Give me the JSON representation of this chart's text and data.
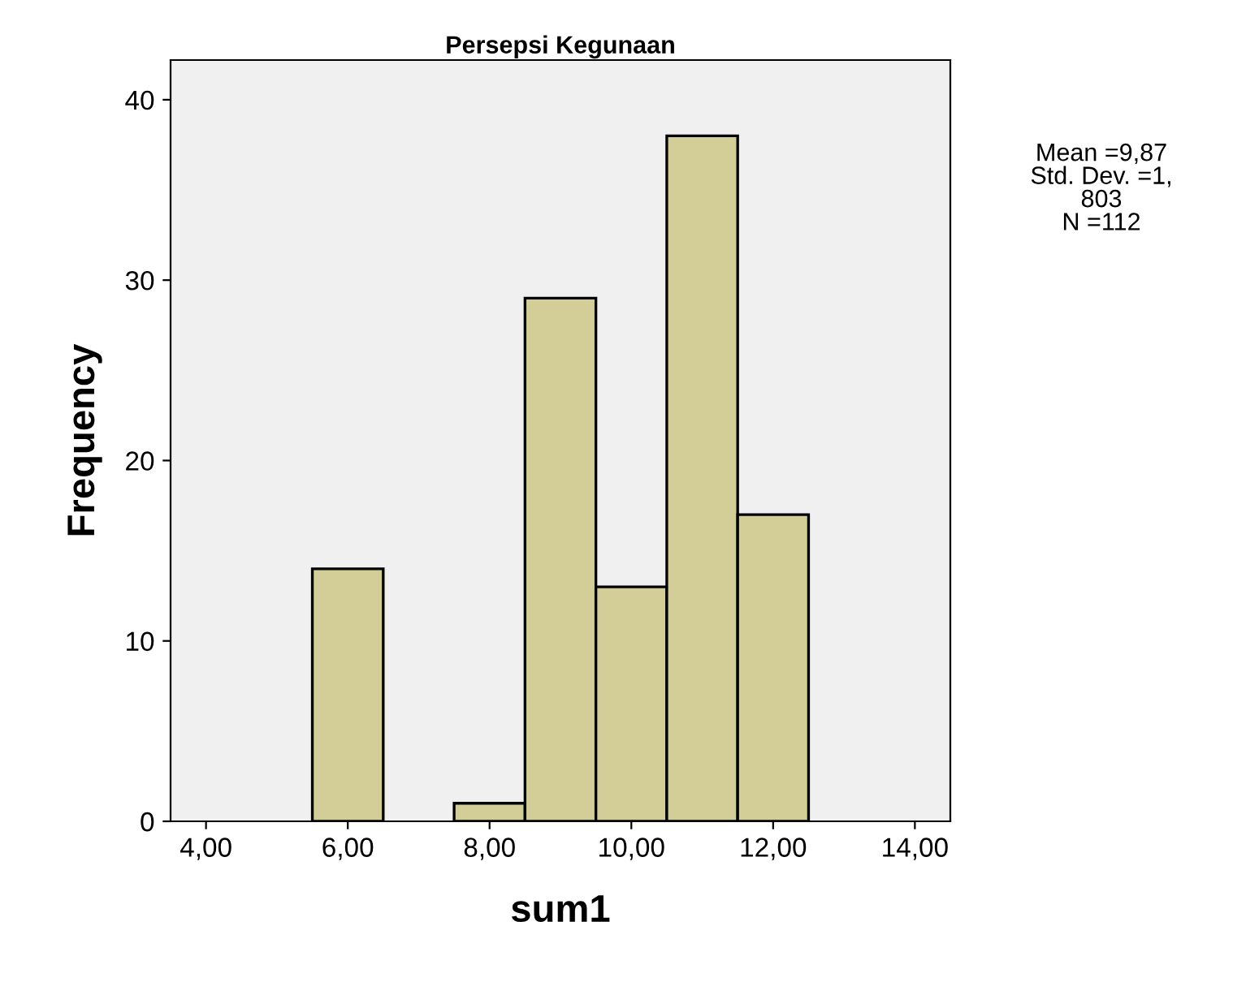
{
  "chart_data": {
    "type": "histogram",
    "title": "Persepsi Kegunaan",
    "xlabel": "sum1",
    "ylabel": "Frequency",
    "bins": [
      5.5,
      6.5,
      7.5,
      8.5,
      9.5,
      10.5,
      11.5,
      12.5
    ],
    "values": [
      14,
      0,
      1,
      29,
      13,
      38,
      17
    ],
    "color": "#d3ce97",
    "xlim": [
      3.5,
      14.5
    ],
    "ylim": [
      0,
      42.2
    ],
    "xticks": [
      {
        "value": 4,
        "label": "4,00"
      },
      {
        "value": 6,
        "label": "6,00"
      },
      {
        "value": 8,
        "label": "8,00"
      },
      {
        "value": 10,
        "label": "10,00"
      },
      {
        "value": 12,
        "label": "12,00"
      },
      {
        "value": 14,
        "label": "14,00"
      }
    ],
    "yticks": [
      0,
      10,
      20,
      30,
      40
    ],
    "grid": false,
    "legend": false,
    "annotations": [
      "Mean =9,87",
      "Std. Dev. =1,",
      "803",
      "N =112"
    ]
  }
}
